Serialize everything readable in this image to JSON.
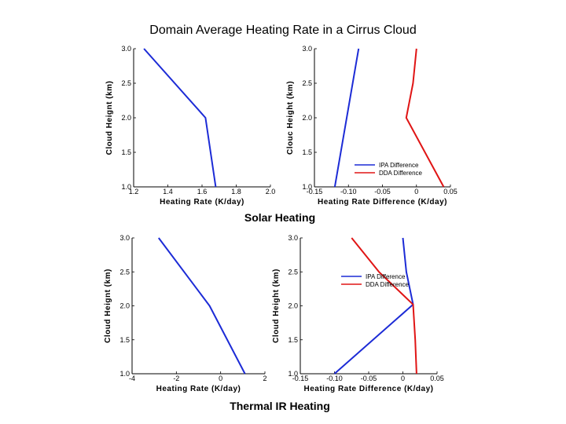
{
  "title": "Domain Average Heating Rate in a Cirrus Cloud",
  "sections": {
    "solar": "Solar Heating",
    "thermal": "Thermal IR Heating"
  },
  "colors": {
    "ipa": "#1c2bd6",
    "dda": "#e01515",
    "axis": "#000000"
  },
  "chart_data": [
    {
      "id": "solar-rate",
      "type": "line",
      "xlabel": "Heating Rate (K/day)",
      "ylabel": "Cloud Heignt (km)",
      "xlim": [
        1.2,
        2.0
      ],
      "ylim": [
        1.0,
        3.0
      ],
      "xticks": [
        1.2,
        1.4,
        1.6,
        1.8,
        2.0
      ],
      "xtick_labels": [
        "1.2",
        "1.4",
        "1.6",
        "1.8",
        "2.0"
      ],
      "yticks": [
        1.0,
        1.5,
        2.0,
        2.5,
        3.0
      ],
      "ytick_labels": [
        "1.0",
        "1.5",
        "2.0",
        "2.5",
        "3.0"
      ],
      "legend": [],
      "series": [
        {
          "color": "#1c2bd6",
          "x": [
            1.68,
            1.62,
            1.26
          ],
          "y": [
            1.0,
            2.0,
            3.0
          ]
        }
      ]
    },
    {
      "id": "solar-diff",
      "type": "line",
      "xlabel": "Heating Rate Difference (K/day)",
      "ylabel": "Clouc Height (km)",
      "xlim": [
        -0.15,
        0.05
      ],
      "ylim": [
        1.0,
        3.0
      ],
      "xticks": [
        -0.15,
        -0.1,
        -0.05,
        0.0,
        0.05
      ],
      "xtick_labels": [
        "-0.15",
        "-0.10",
        "-0.05",
        "0",
        "0.05"
      ],
      "yticks": [
        1.0,
        1.5,
        2.0,
        2.5,
        3.0
      ],
      "ytick_labels": [
        "1.0",
        "1.5",
        "2.0",
        "2.5",
        "3.0"
      ],
      "legend_position": "lower-right",
      "legend": [
        {
          "name": "IPA Difference",
          "color": "#1c2bd6"
        },
        {
          "name": "DDA Difference",
          "color": "#e01515"
        }
      ],
      "series": [
        {
          "name": "IPA Difference",
          "color": "#1c2bd6",
          "x": [
            -0.12,
            -0.085
          ],
          "y": [
            1.0,
            3.0
          ]
        },
        {
          "name": "DDA Difference",
          "color": "#e01515",
          "x": [
            0.04,
            -0.015,
            -0.005,
            0.0
          ],
          "y": [
            1.0,
            2.0,
            2.5,
            3.0
          ]
        }
      ]
    },
    {
      "id": "thermal-rate",
      "type": "line",
      "xlabel": "Heating Rate (K/day)",
      "ylabel": "Cloud Heignt (km)",
      "xlim": [
        -4,
        2
      ],
      "ylim": [
        1.0,
        3.0
      ],
      "xticks": [
        -4,
        -2,
        0,
        2
      ],
      "xtick_labels": [
        "-4",
        "-2",
        "0",
        "2"
      ],
      "yticks": [
        1.0,
        1.5,
        2.0,
        2.5,
        3.0
      ],
      "ytick_labels": [
        "1.0",
        "1.5",
        "2.0",
        "2.5",
        "3.0"
      ],
      "legend": [],
      "series": [
        {
          "color": "#1c2bd6",
          "x": [
            1.1,
            -0.5,
            -2.8
          ],
          "y": [
            1.0,
            2.0,
            3.0
          ]
        }
      ]
    },
    {
      "id": "thermal-diff",
      "type": "line",
      "xlabel": "Heating Rate Difference (K/day)",
      "ylabel": "Cloud Height (km)",
      "xlim": [
        -0.15,
        0.05
      ],
      "ylim": [
        1.0,
        3.0
      ],
      "xticks": [
        -0.15,
        -0.1,
        -0.05,
        0.0,
        0.05
      ],
      "xtick_labels": [
        "-0.15",
        "-0.10",
        "-0.05",
        "0",
        "0.05"
      ],
      "yticks": [
        1.0,
        1.5,
        2.0,
        2.5,
        3.0
      ],
      "ytick_labels": [
        "1.0",
        "1.5",
        "2.0",
        "2.5",
        "3.0"
      ],
      "legend_position": "upper-right",
      "legend": [
        {
          "name": "IPA Difference",
          "color": "#1c2bd6"
        },
        {
          "name": "DDA Difference",
          "color": "#e01515"
        }
      ],
      "series": [
        {
          "name": "IPA Difference",
          "color": "#1c2bd6",
          "x": [
            -0.1,
            0.015,
            0.005,
            0.0
          ],
          "y": [
            1.0,
            2.02,
            2.5,
            3.0
          ]
        },
        {
          "name": "DDA Difference",
          "color": "#e01515",
          "x": [
            0.02,
            0.018,
            0.015,
            -0.035,
            -0.075
          ],
          "y": [
            1.0,
            1.5,
            2.02,
            2.5,
            3.0
          ]
        }
      ]
    }
  ]
}
